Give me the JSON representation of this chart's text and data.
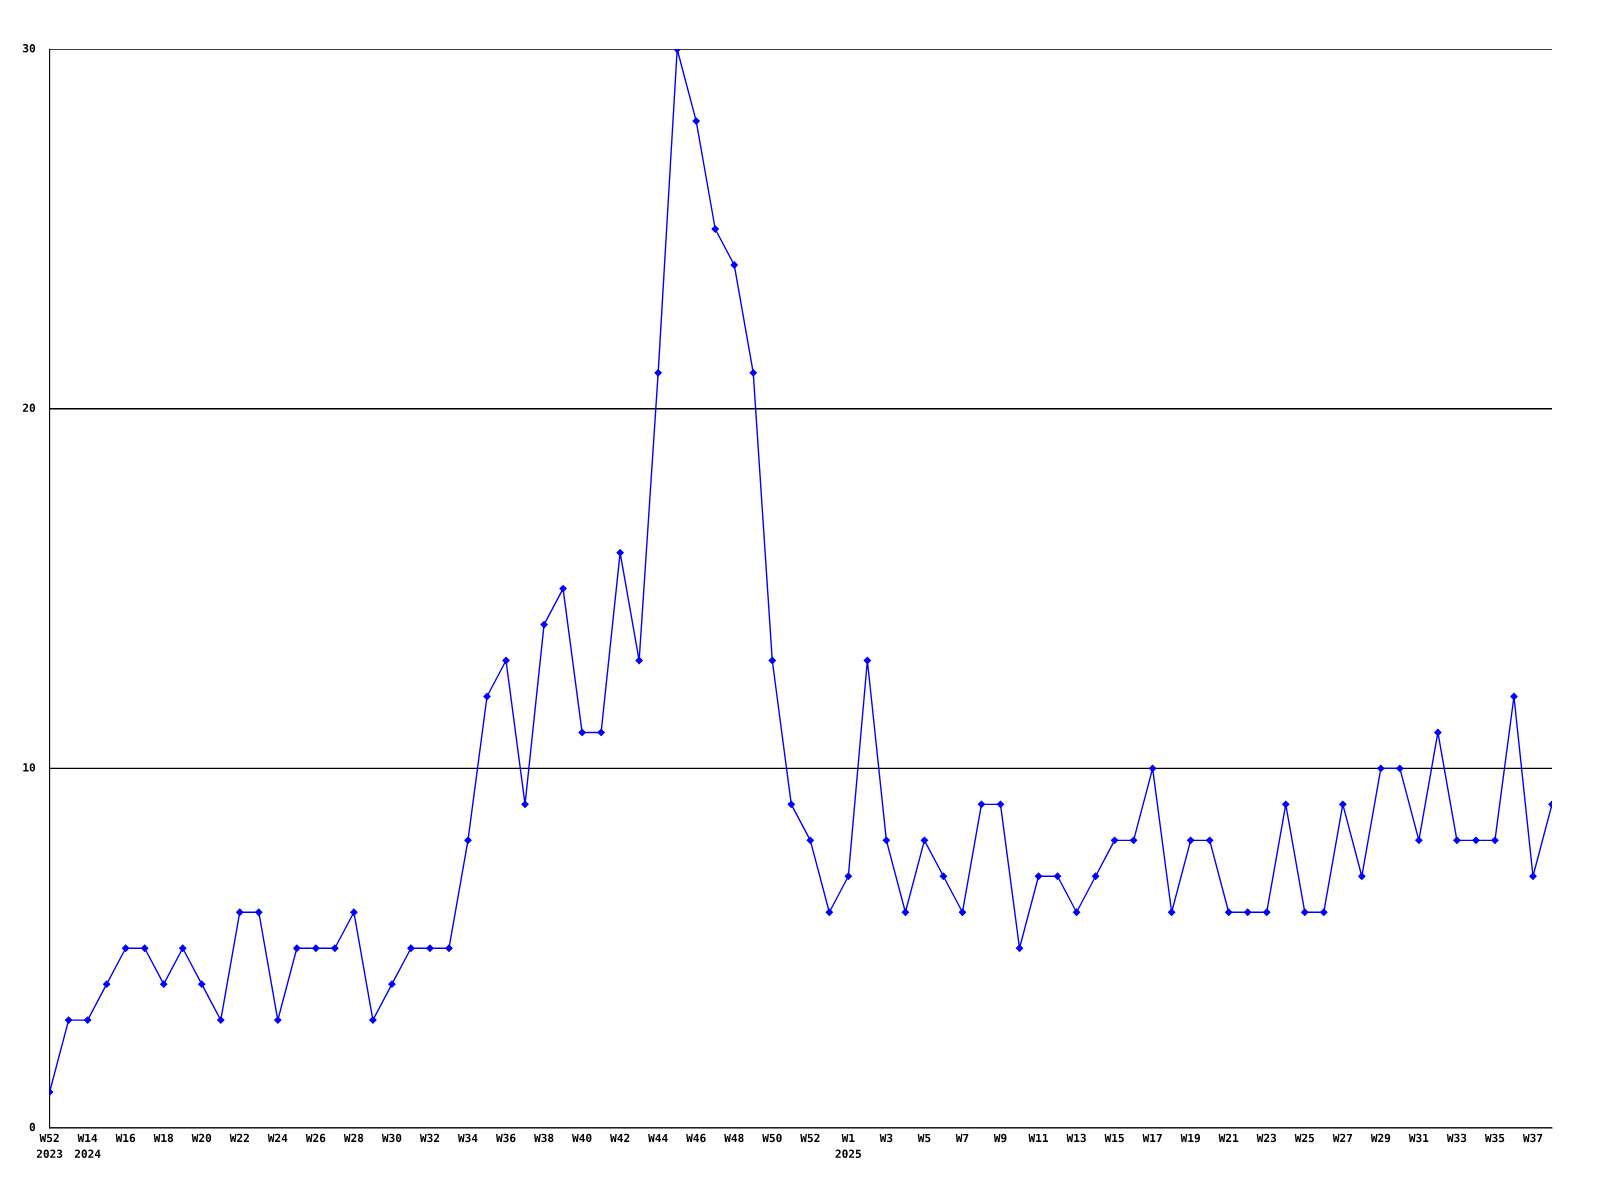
{
  "chart_data": {
    "type": "line",
    "categories": [
      "W52\n2023",
      null,
      "W14\n2024",
      null,
      "W16",
      null,
      "W18",
      null,
      "W20",
      null,
      "W22",
      null,
      "W24",
      null,
      "W26",
      null,
      "W28",
      null,
      "W30",
      null,
      "W32",
      null,
      "W34",
      null,
      "W36",
      null,
      "W38",
      null,
      "W40",
      null,
      "W42",
      null,
      "W44",
      null,
      "W46",
      null,
      "W48",
      null,
      "W50",
      null,
      "W52",
      null,
      "W1\n2025",
      null,
      "W3",
      null,
      "W5",
      null,
      "W7",
      null,
      "W9",
      null,
      "W11",
      null,
      "W13",
      null,
      "W15",
      null,
      "W17",
      null,
      "W19",
      null,
      "W21",
      null,
      "W23",
      null,
      "W25",
      null,
      "W27",
      null,
      "W29",
      null,
      "W31",
      null,
      "W33",
      null,
      "W35",
      null,
      "W37",
      null
    ],
    "series": [
      {
        "color": "#0000ff",
        "values": [
          1,
          3,
          3,
          4,
          5,
          5,
          4,
          5,
          4,
          3,
          6,
          6,
          3,
          5,
          5,
          5,
          6,
          3,
          4,
          5,
          5,
          5,
          8,
          12,
          13,
          9,
          14,
          15,
          11,
          11,
          16,
          13,
          21,
          30,
          28,
          25,
          24,
          21,
          13,
          9,
          8,
          6,
          7,
          13,
          8,
          6,
          8,
          7,
          6,
          9,
          9,
          5,
          7,
          7,
          6,
          7,
          8,
          8,
          10,
          6,
          8,
          8,
          6,
          6,
          6,
          9,
          6,
          6,
          9,
          7,
          10,
          10,
          8,
          11,
          8,
          8,
          8,
          12,
          7,
          9
        ]
      }
    ],
    "ylim": [
      0,
      30
    ],
    "yticks": [
      0,
      10,
      20,
      30
    ],
    "grid": "y",
    "marker": "diamond",
    "line_style": "solid",
    "legend": false
  }
}
